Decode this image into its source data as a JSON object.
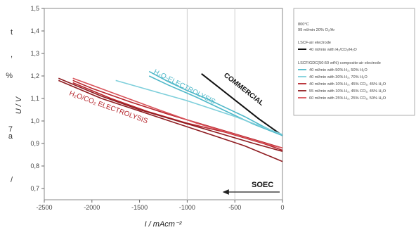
{
  "page": {
    "left_text_fragments": [
      "t",
      ",",
      "%",
      "7",
      "a",
      "/"
    ]
  },
  "chart_data": {
    "type": "line",
    "xlabel": "I / mAcm⁻²",
    "ylabel": "U / V",
    "xlim": [
      -2500,
      0
    ],
    "ylim": [
      0.65,
      1.5
    ],
    "x_ticks": [
      "-2500",
      "-2000",
      "-1500",
      "-1000",
      "-500",
      "0"
    ],
    "y_ticks": [
      "0,7",
      "0,8",
      "0,9",
      "1,0",
      "1,1",
      "1,2",
      "1,3",
      "1,4",
      "1,5"
    ],
    "grid": "vertical lines at -1000 and -500",
    "annotations": [
      {
        "text": "COMMERCIAL",
        "color": "#111111"
      },
      {
        "text": "H₂O-ELECTROLYSIS",
        "color": "#4fb8c9"
      },
      {
        "text": "H₂O/CO₂ ELECTROLYSIS",
        "color": "#b5242b"
      },
      {
        "text": "SOEC",
        "color": "#111111"
      }
    ],
    "legend": {
      "position": "right",
      "header": [
        "800°C",
        "99 ml/min 20% O₂/Ar"
      ],
      "group1_title": "LSCF-air electrode",
      "group1_items": [
        {
          "label": "40 ml/min with H₂/CO₂/H₂O",
          "color": "#111111"
        }
      ],
      "group2_title": "LSCF/GDC(50:50 wt%) composite-air electrode",
      "group2_items": [
        {
          "label": "40 ml/min with 50% H₂, 50% H₂O",
          "color": "#4fb8c9"
        },
        {
          "label": "40 ml/min with 30% H₂, 70% H₂O",
          "color": "#7ecfdb"
        },
        {
          "label": "40 ml/min with 10% H₂, 45% CO₂, 45% H₂O",
          "color": "#b5242b"
        },
        {
          "label": "55 ml/min with 10% H₂, 45% CO₂, 45% H₂O",
          "color": "#8e1b20"
        },
        {
          "label": "60 ml/min with 25% H₂, 25% CO₂, 50% H₂O",
          "color": "#d9535a"
        }
      ]
    },
    "series": [
      {
        "color": "#111111",
        "x": [
          -850,
          -700,
          -550,
          -400,
          -250,
          -100,
          0
        ],
        "y": [
          1.21,
          1.16,
          1.11,
          1.06,
          1.01,
          0.965,
          0.935
        ]
      },
      {
        "color": "#4fb8c9",
        "x": [
          -1400,
          -1200,
          -1000,
          -800,
          -600,
          -400,
          -200,
          0
        ],
        "y": [
          1.22,
          1.175,
          1.135,
          1.1,
          1.06,
          1.02,
          0.975,
          0.935
        ]
      },
      {
        "color": "#4fb8c9",
        "x": [
          0,
          -300,
          -600,
          -900,
          -1200,
          -1400
        ],
        "y": [
          0.935,
          0.985,
          1.045,
          1.105,
          1.16,
          1.2
        ]
      },
      {
        "color": "#7ecfdb",
        "x": [
          -1750,
          -1500,
          -1250,
          -1000,
          -750,
          -500,
          -250,
          0
        ],
        "y": [
          1.18,
          1.15,
          1.12,
          1.09,
          1.055,
          1.02,
          0.98,
          0.94
        ]
      },
      {
        "color": "#b5242b",
        "x": [
          -2200,
          -1800,
          -1400,
          -1000,
          -600,
          -200,
          0
        ],
        "y": [
          1.17,
          1.1,
          1.04,
          0.99,
          0.95,
          0.9,
          0.87
        ]
      },
      {
        "color": "#b5242b",
        "x": [
          0,
          -400,
          -800,
          -1200,
          -1600,
          -2000,
          -2200
        ],
        "y": [
          0.88,
          0.93,
          0.98,
          1.03,
          1.085,
          1.145,
          1.18
        ]
      },
      {
        "color": "#8e1b20",
        "x": [
          -2350,
          -1900,
          -1500,
          -1100,
          -700,
          -300,
          0
        ],
        "y": [
          1.19,
          1.11,
          1.05,
          1.0,
          0.95,
          0.9,
          0.865
        ]
      },
      {
        "color": "#8e1b20",
        "x": [
          0,
          -400,
          -900,
          -1400,
          -1900,
          -2350
        ],
        "y": [
          0.82,
          0.89,
          0.96,
          1.03,
          1.1,
          1.18
        ]
      },
      {
        "color": "#d9535a",
        "x": [
          -2200,
          -1750,
          -1300,
          -900,
          -500,
          -100,
          0
        ],
        "y": [
          1.19,
          1.12,
          1.05,
          0.99,
          0.94,
          0.89,
          0.88
        ]
      }
    ]
  }
}
